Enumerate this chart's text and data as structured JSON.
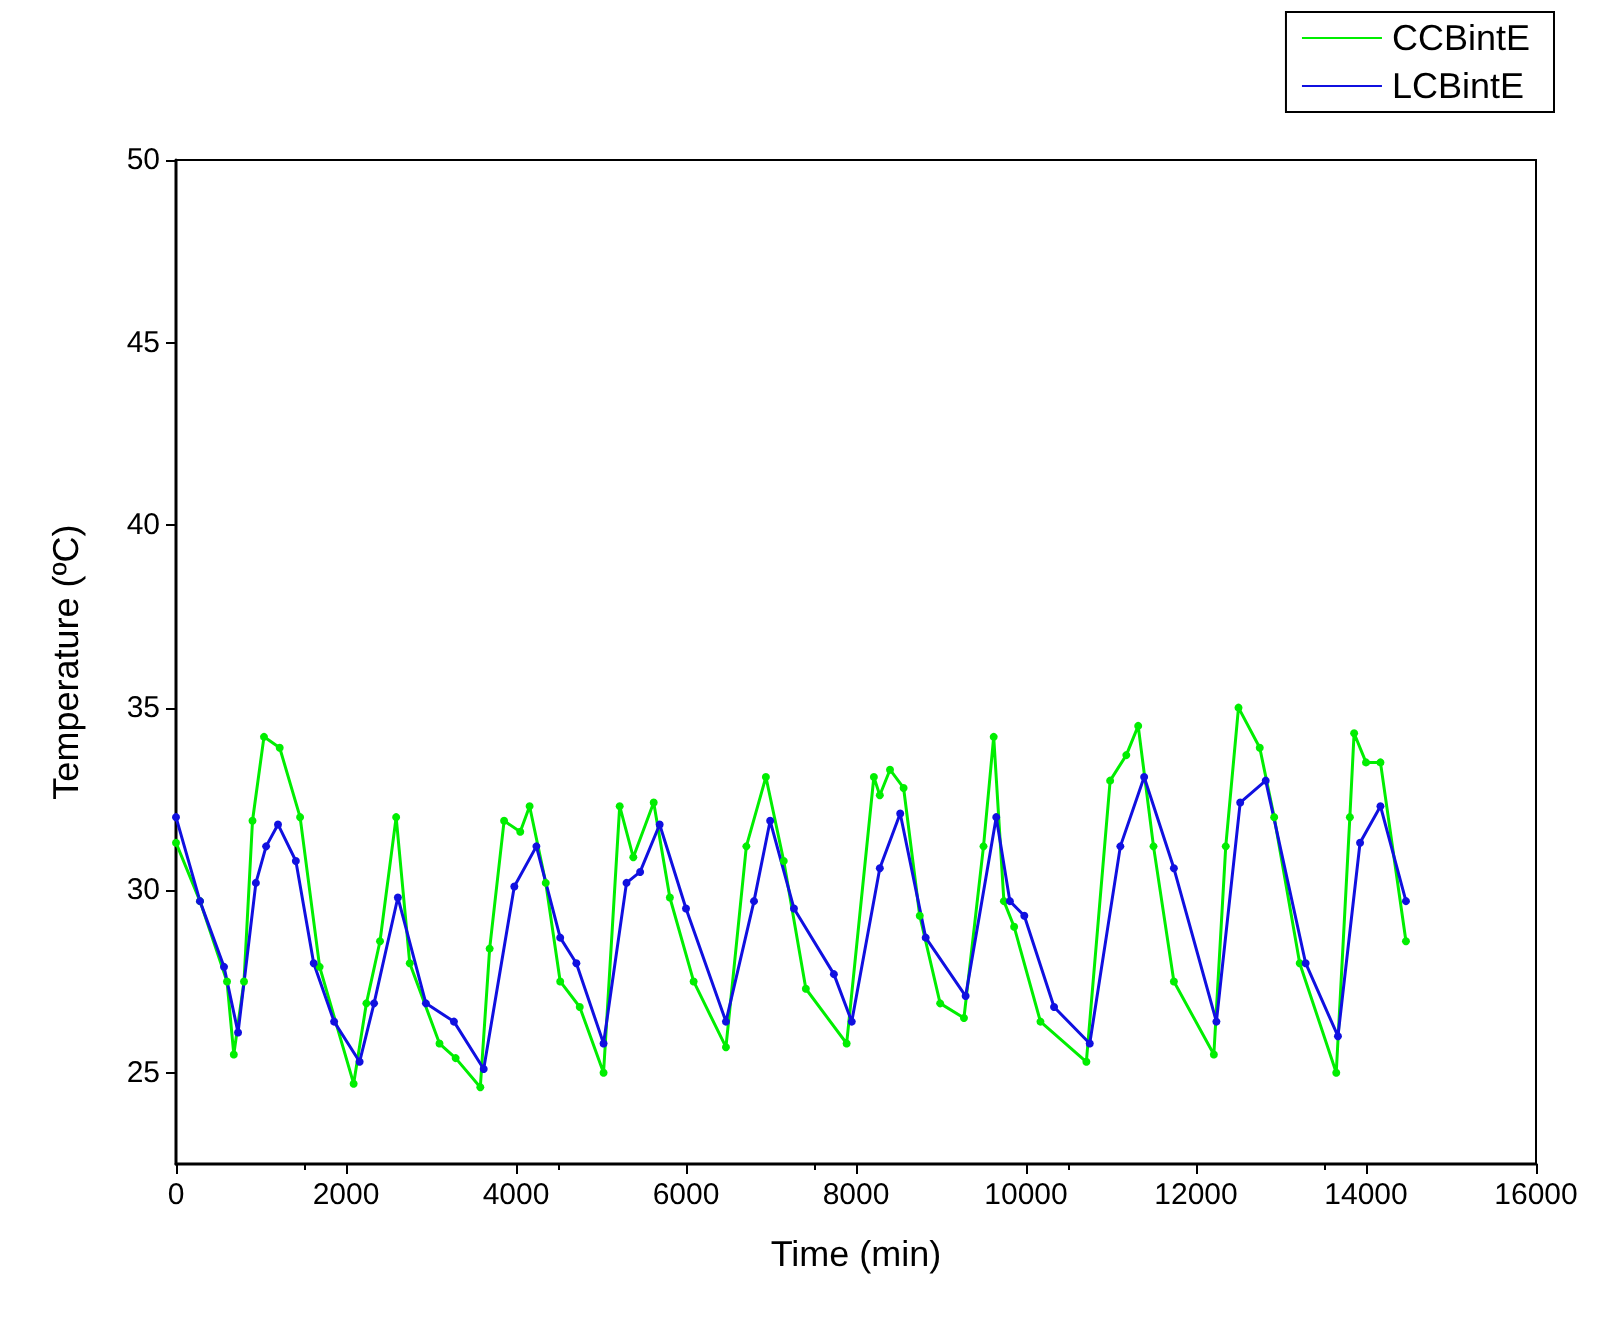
{
  "chart_data": {
    "type": "line",
    "xlabel": "Time (min)",
    "ylabel": "Temperature (ºC)",
    "xlim": [
      0,
      16000
    ],
    "xticks": [
      0,
      2000,
      4000,
      6000,
      8000,
      10000,
      12000,
      14000,
      16000
    ],
    "ylim": [
      22.5,
      50
    ],
    "yticks": [
      25,
      30,
      35,
      40,
      45,
      50
    ],
    "grid": false,
    "legend": "top right",
    "marker": "circle",
    "line_style": "solid",
    "series": [
      {
        "name": "CCBintE",
        "color": "#00ee00",
        "x": [
          0,
          282,
          600,
          680,
          800,
          900,
          1035,
          1220,
          1460,
          1690,
          2090,
          2240,
          2400,
          2590,
          2750,
          3100,
          3290,
          3580,
          3690,
          3860,
          4050,
          4160,
          4350,
          4520,
          4750,
          5030,
          5220,
          5380,
          5620,
          5810,
          6090,
          6470,
          6710,
          6940,
          7150,
          7410,
          7890,
          8210,
          8280,
          8400,
          8560,
          8750,
          8990,
          9270,
          9500,
          9620,
          9740,
          9860,
          10170,
          10710,
          10990,
          11180,
          11320,
          11500,
          11740,
          12210,
          12350,
          12500,
          12750,
          12920,
          13220,
          13650,
          13810,
          13860,
          14000,
          14170,
          14470
        ],
        "values": [
          31.3,
          29.7,
          27.5,
          25.5,
          27.5,
          31.9,
          34.2,
          33.9,
          32.0,
          27.9,
          24.7,
          26.9,
          28.6,
          32.0,
          28.0,
          25.8,
          25.4,
          24.6,
          28.4,
          31.9,
          31.6,
          32.3,
          30.2,
          27.5,
          26.8,
          25.0,
          32.3,
          30.9,
          32.4,
          29.8,
          27.5,
          25.7,
          31.2,
          33.1,
          30.8,
          27.3,
          25.8,
          33.1,
          32.6,
          33.3,
          32.8,
          29.3,
          26.9,
          26.5,
          31.2,
          34.2,
          29.7,
          29.0,
          26.4,
          25.3,
          33.0,
          33.7,
          34.5,
          31.2,
          27.5,
          25.5,
          31.2,
          35.0,
          33.9,
          32.0,
          28.0,
          25.0,
          32.0,
          34.3,
          33.5,
          33.5,
          28.6
        ]
      },
      {
        "name": "LCBintE",
        "color": "#1010e0",
        "x": [
          0,
          282,
          565,
          730,
          940,
          1060,
          1200,
          1410,
          1620,
          1860,
          2160,
          2330,
          2610,
          2940,
          3270,
          3620,
          3980,
          4240,
          4520,
          4710,
          5030,
          5300,
          5460,
          5690,
          6000,
          6470,
          6800,
          6990,
          7270,
          7740,
          7950,
          8280,
          8520,
          8820,
          9290,
          9650,
          9810,
          9980,
          10330,
          10750,
          11110,
          11390,
          11740,
          12240,
          12520,
          12820,
          13290,
          13670,
          13930,
          14170,
          14470
        ],
        "values": [
          32.0,
          29.7,
          27.9,
          26.1,
          30.2,
          31.2,
          31.8,
          30.8,
          28.0,
          26.4,
          25.3,
          26.9,
          29.8,
          26.9,
          26.4,
          25.1,
          30.1,
          31.2,
          28.7,
          28.0,
          25.8,
          30.2,
          30.5,
          31.8,
          29.5,
          26.4,
          29.7,
          31.9,
          29.5,
          27.7,
          26.4,
          30.6,
          32.1,
          28.7,
          27.1,
          32.0,
          29.7,
          29.3,
          26.8,
          25.8,
          31.2,
          33.1,
          30.6,
          26.4,
          32.4,
          33.0,
          28.0,
          26.0,
          31.3,
          32.3,
          29.7
        ]
      }
    ]
  }
}
